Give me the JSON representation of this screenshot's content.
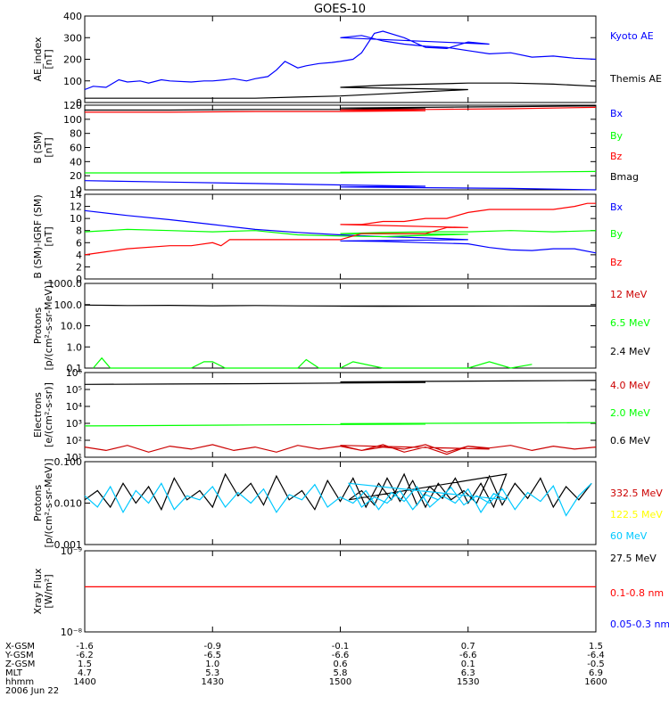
{
  "title": "GOES-10",
  "colors": {
    "blue": "#0000ff",
    "red": "#ff0000",
    "green": "#00ff00",
    "dark_red": "#cc0000",
    "yellow": "#ffff00",
    "cyan": "#00c8ff",
    "black": "#000000"
  },
  "chart_data": [
    {
      "type": "line",
      "ylabel": "AE_index\n[nT]",
      "yticks": [
        "0",
        "100",
        "200",
        "300",
        "400"
      ],
      "ylim": [
        0,
        400
      ],
      "legend": [
        {
          "name": "Kyoto AE",
          "color": "blue"
        },
        {
          "name": "Themis AE",
          "color": "black"
        }
      ],
      "series": [
        {
          "name": "Kyoto AE",
          "color": "blue",
          "x": [
            1400,
            1402,
            1405,
            1408,
            1410,
            1413,
            1415,
            1418,
            1420,
            1425,
            1428,
            1430,
            1433,
            1435,
            1438,
            1440,
            1443,
            1445,
            1447,
            1450,
            1452,
            1455,
            1458,
            1460,
            1463,
            1465,
            1468,
            1470,
            1475,
            1480,
            1485,
            1490,
            1495,
            1500,
            1505,
            1510,
            1515,
            1520,
            1525,
            1530,
            1535,
            1540,
            1545,
            1550,
            1555,
            1560
          ],
          "y": [
            60,
            75,
            70,
            105,
            95,
            100,
            90,
            105,
            100,
            95,
            100,
            100,
            105,
            110,
            100,
            110,
            120,
            150,
            190,
            160,
            170,
            180,
            185,
            190,
            200,
            230,
            320,
            330,
            300,
            255,
            250,
            280,
            270,
            300,
            310,
            285,
            270,
            260,
            255,
            240,
            225,
            230,
            210,
            215,
            205,
            200
          ]
        },
        {
          "name": "Themis AE",
          "color": "black",
          "x": [
            1400,
            1410,
            1420,
            1430,
            1440,
            1450,
            1460,
            1470,
            1480,
            1490,
            1500,
            1510,
            1520,
            1530,
            1540,
            1550,
            1560
          ],
          "y": [
            20,
            20,
            20,
            20,
            20,
            25,
            30,
            40,
            50,
            60,
            70,
            80,
            85,
            90,
            90,
            85,
            75
          ]
        }
      ]
    },
    {
      "type": "line",
      "ylabel": "B (SM)\n[nT]",
      "yticks": [
        "0",
        "20",
        "40",
        "60",
        "80",
        "100",
        "120"
      ],
      "ylim": [
        0,
        120
      ],
      "legend": [
        {
          "name": "Bx",
          "color": "blue"
        },
        {
          "name": "By",
          "color": "green"
        },
        {
          "name": "Bz",
          "color": "red"
        },
        {
          "name": "Bmag",
          "color": "black"
        }
      ],
      "series": [
        {
          "name": "Bmag",
          "color": "black",
          "x": [
            1400,
            1420,
            1440,
            1460,
            1480,
            1500,
            1520,
            1540,
            1560
          ],
          "y": [
            113,
            113,
            114,
            114,
            115,
            116,
            117,
            118,
            119
          ]
        },
        {
          "name": "Bz",
          "color": "red",
          "x": [
            1400,
            1420,
            1440,
            1460,
            1480,
            1500,
            1520,
            1540,
            1560
          ],
          "y": [
            110,
            110,
            111,
            111,
            112,
            113,
            114,
            115,
            117
          ]
        },
        {
          "name": "By",
          "color": "green",
          "x": [
            1400,
            1420,
            1440,
            1460,
            1480,
            1500,
            1520,
            1540,
            1560
          ],
          "y": [
            24,
            24,
            24,
            24,
            25,
            25,
            25,
            25,
            26
          ]
        },
        {
          "name": "Bx",
          "color": "blue",
          "x": [
            1400,
            1420,
            1440,
            1460,
            1480,
            1500,
            1520,
            1540,
            1560
          ],
          "y": [
            13,
            11,
            9,
            7,
            5,
            4,
            3,
            2,
            -1
          ]
        }
      ]
    },
    {
      "type": "line",
      "ylabel": "B (SM)-IGRF (SM)\n[nT]",
      "yticks": [
        "0",
        "2",
        "4",
        "6",
        "8",
        "10",
        "12",
        "14"
      ],
      "ylim": [
        0,
        14
      ],
      "legend": [
        {
          "name": "Bx",
          "color": "blue"
        },
        {
          "name": "By",
          "color": "green"
        },
        {
          "name": "Bz",
          "color": "red"
        }
      ],
      "series": [
        {
          "name": "Bx",
          "color": "blue",
          "x": [
            1400,
            1410,
            1420,
            1430,
            1440,
            1450,
            1460,
            1470,
            1480,
            1490,
            1500,
            1510,
            1520,
            1530,
            1535,
            1540,
            1545,
            1550,
            1555,
            1560
          ],
          "y": [
            11.3,
            10.5,
            9.8,
            9.0,
            8.2,
            7.7,
            7.3,
            7.0,
            6.8,
            6.5,
            6.3,
            6.2,
            6.0,
            5.8,
            5.2,
            4.8,
            4.7,
            5.0,
            5.0,
            4.3
          ]
        },
        {
          "name": "By",
          "color": "green",
          "x": [
            1400,
            1410,
            1420,
            1430,
            1440,
            1450,
            1460,
            1470,
            1480,
            1490,
            1500,
            1510,
            1520,
            1530,
            1540,
            1550,
            1560
          ],
          "y": [
            7.8,
            8.2,
            8.0,
            7.8,
            8.0,
            7.3,
            7.1,
            7.0,
            7.2,
            7.4,
            7.5,
            7.7,
            7.8,
            7.8,
            8.0,
            7.8,
            8.0
          ]
        },
        {
          "name": "Bz",
          "color": "red",
          "x": [
            1400,
            1405,
            1410,
            1420,
            1425,
            1430,
            1432,
            1434,
            1436,
            1445,
            1450,
            1460,
            1465,
            1470,
            1480,
            1485,
            1490,
            1500,
            1505,
            1510,
            1515,
            1520,
            1525,
            1530,
            1535,
            1540,
            1545,
            1550,
            1555,
            1558,
            1560
          ],
          "y": [
            4.0,
            4.5,
            5.0,
            5.5,
            5.5,
            6.0,
            5.5,
            6.5,
            6.5,
            6.5,
            6.5,
            6.5,
            7.5,
            7.5,
            7.5,
            8.5,
            8.5,
            9.0,
            9.0,
            9.5,
            9.5,
            10.0,
            10.0,
            11.0,
            11.5,
            11.5,
            11.5,
            11.5,
            12.0,
            12.5,
            12.5
          ]
        }
      ]
    },
    {
      "type": "line",
      "scale": "log",
      "ylabel": "Protons\n[p/(cm²-s-sr-MeV)]",
      "yticks": [
        "0.1",
        "1.0",
        "10.0",
        "100.0",
        "1000.0"
      ],
      "ylim": [
        0.1,
        1000
      ],
      "legend": [
        {
          "name": "12 MeV",
          "color": "dark_red"
        },
        {
          "name": "6.5 MeV",
          "color": "green"
        },
        {
          "name": "2.4 MeV",
          "color": "black"
        }
      ],
      "series": [
        {
          "name": "2.4 MeV",
          "color": "black",
          "x": [
            1400,
            1410,
            1420,
            1430,
            1440,
            1450,
            1460,
            1470,
            1480,
            1490,
            1500,
            1510,
            1520,
            1530,
            1540,
            1550,
            1560
          ],
          "y": [
            95,
            90,
            92,
            88,
            90,
            87,
            85,
            86,
            84,
            85,
            84,
            83,
            84,
            85,
            86,
            85,
            85
          ]
        },
        {
          "name": "6.5 MeV",
          "color": "green",
          "x": [
            1402,
            1404,
            1406,
            1425,
            1428,
            1430,
            1433,
            1450,
            1452,
            1455,
            1460,
            1463,
            1470,
            1490,
            1495,
            1540,
            1545
          ],
          "y": [
            0.1,
            0.3,
            0.1,
            0.1,
            0.2,
            0.2,
            0.1,
            0.1,
            0.25,
            0.1,
            0.1,
            0.2,
            0.1,
            0.1,
            0.2,
            0.1,
            0.15
          ]
        }
      ]
    },
    {
      "type": "line",
      "scale": "log",
      "ylabel": "Electrons\n[e/(cm²-s-sr)]",
      "yticks": [
        "10¹",
        "10²",
        "10³",
        "10⁴",
        "10⁵",
        "10⁶"
      ],
      "ylim": [
        10,
        1000000
      ],
      "legend": [
        {
          "name": "4.0 MeV",
          "color": "dark_red"
        },
        {
          "name": "2.0 MeV",
          "color": "green"
        },
        {
          "name": "0.6 MeV",
          "color": "black"
        }
      ],
      "series": [
        {
          "name": "0.6 MeV",
          "color": "black",
          "x": [
            1400,
            1420,
            1440,
            1460,
            1480,
            1500,
            1520,
            1540,
            1560
          ],
          "y": [
            200000,
            210000,
            220000,
            240000,
            260000,
            280000,
            300000,
            320000,
            340000
          ]
        },
        {
          "name": "2.0 MeV",
          "color": "green",
          "x": [
            1400,
            1420,
            1440,
            1460,
            1480,
            1500,
            1520,
            1540,
            1560
          ],
          "y": [
            700,
            750,
            800,
            850,
            900,
            950,
            1000,
            1050,
            1100
          ]
        },
        {
          "name": "4.0 MeV",
          "color": "dark_red",
          "x": [
            1400,
            1405,
            1410,
            1415,
            1420,
            1425,
            1430,
            1435,
            1440,
            1445,
            1450,
            1455,
            1460,
            1465,
            1470,
            1475,
            1480,
            1485,
            1490,
            1495,
            1500,
            1505,
            1510,
            1515,
            1520,
            1525,
            1530,
            1535,
            1540,
            1545,
            1550,
            1555,
            1560
          ],
          "y": [
            40,
            25,
            50,
            20,
            45,
            30,
            55,
            25,
            40,
            20,
            50,
            30,
            45,
            25,
            55,
            20,
            40,
            15,
            45,
            30,
            50,
            25,
            40,
            30,
            55,
            20,
            45,
            35,
            50,
            25,
            45,
            30,
            40
          ]
        }
      ]
    },
    {
      "type": "line",
      "scale": "log",
      "ylabel": "Protons\n[p/(cm²-s-sr-MeV)]",
      "yticks": [
        "0.001",
        "0.010",
        "0.100"
      ],
      "ylim": [
        0.001,
        0.1
      ],
      "legend": [
        {
          "name": "332.5 MeV",
          "color": "dark_red"
        },
        {
          "name": "122.5 MeV",
          "color": "yellow"
        },
        {
          "name": "60 MeV",
          "color": "cyan"
        },
        {
          "name": "27.5 MeV",
          "color": "black"
        }
      ],
      "series": [
        {
          "name": "27.5 MeV",
          "color": "black",
          "x": [
            1400,
            1403,
            1406,
            1409,
            1412,
            1415,
            1418,
            1421,
            1424,
            1427,
            1430,
            1433,
            1436,
            1439,
            1442,
            1445,
            1448,
            1451,
            1454,
            1457,
            1460,
            1463,
            1466,
            1469,
            1472,
            1475,
            1478,
            1481,
            1484,
            1487,
            1490,
            1493,
            1496,
            1499,
            1502,
            1505,
            1508,
            1511,
            1514,
            1517,
            1520,
            1523,
            1526,
            1529,
            1532,
            1535,
            1538,
            1541,
            1544,
            1547,
            1550,
            1553,
            1556,
            1559
          ],
          "y": [
            0.012,
            0.02,
            0.008,
            0.03,
            0.01,
            0.025,
            0.007,
            0.04,
            0.012,
            0.02,
            0.008,
            0.05,
            0.015,
            0.03,
            0.009,
            0.045,
            0.012,
            0.02,
            0.007,
            0.035,
            0.011,
            0.04,
            0.008,
            0.03,
            0.012,
            0.05,
            0.009,
            0.025,
            0.013,
            0.04,
            0.01,
            0.03,
            0.008,
            0.05,
            0.012,
            0.02,
            0.009,
            0.04,
            0.011,
            0.035,
            0.008,
            0.03,
            0.012,
            0.02,
            0.01,
            0.045,
            0.009,
            0.03,
            0.013,
            0.04,
            0.008,
            0.025,
            0.012,
            0.03
          ]
        },
        {
          "name": "60 MeV",
          "color": "cyan",
          "x": [
            1400,
            1403,
            1406,
            1409,
            1412,
            1415,
            1418,
            1421,
            1424,
            1427,
            1430,
            1433,
            1436,
            1439,
            1442,
            1445,
            1448,
            1451,
            1454,
            1457,
            1460,
            1463,
            1466,
            1469,
            1472,
            1475,
            1478,
            1481,
            1484,
            1487,
            1490,
            1493,
            1496,
            1499,
            1502,
            1505,
            1508,
            1511,
            1514,
            1517,
            1520,
            1523,
            1526,
            1529,
            1532,
            1535,
            1538,
            1541,
            1544,
            1547,
            1550,
            1553,
            1556,
            1559
          ],
          "y": [
            0.015,
            0.008,
            0.025,
            0.006,
            0.02,
            0.01,
            0.03,
            0.007,
            0.015,
            0.012,
            0.025,
            0.008,
            0.018,
            0.01,
            0.022,
            0.006,
            0.016,
            0.012,
            0.028,
            0.008,
            0.014,
            0.01,
            0.02,
            0.007,
            0.018,
            0.011,
            0.025,
            0.008,
            0.015,
            0.01,
            0.022,
            0.006,
            0.017,
            0.012,
            0.03,
            0.008,
            0.014,
            0.01,
            0.02,
            0.007,
            0.016,
            0.012,
            0.024,
            0.009,
            0.015,
            0.01,
            0.022,
            0.007,
            0.018,
            0.011,
            0.026,
            0.005,
            0.015,
            0.03
          ]
        }
      ]
    },
    {
      "type": "line",
      "scale": "log",
      "ylabel": "Xray Flux\n[W/m²]",
      "yticks": [
        "10⁻⁸",
        "10⁻⁹"
      ],
      "ylim": [
        1e-09,
        1e-08
      ],
      "legend": [
        {
          "name": "0.1-0.8 nm",
          "color": "red"
        },
        {
          "name": "0.05-0.3 nm",
          "color": "blue"
        }
      ],
      "series": [
        {
          "name": "0.1-0.8 nm",
          "color": "red",
          "x": [
            1400,
            1560
          ],
          "y": [
            3.6e-09,
            3.6e-09
          ]
        }
      ]
    }
  ],
  "xaxis": {
    "ticks": [
      1400,
      1430,
      1500,
      1530,
      1600
    ],
    "rows": [
      {
        "label": "X-GSM",
        "values": [
          "-1.6",
          "-0.9",
          "-0.1",
          "0.7",
          "1.5"
        ]
      },
      {
        "label": "Y-GSM",
        "values": [
          "-6.2",
          "-6.5",
          "-6.6",
          "-6.6",
          "-6.4"
        ]
      },
      {
        "label": "Z-GSM",
        "values": [
          "1.5",
          "1.0",
          "0.6",
          "0.1",
          "-0.5"
        ]
      },
      {
        "label": "MLT",
        "values": [
          "4.7",
          "5.3",
          "5.8",
          "6.3",
          "6.9"
        ]
      },
      {
        "label": "hhmm",
        "values": [
          "1400",
          "1430",
          "1500",
          "1530",
          "1600"
        ]
      }
    ],
    "date": "2006 Jun 22"
  }
}
